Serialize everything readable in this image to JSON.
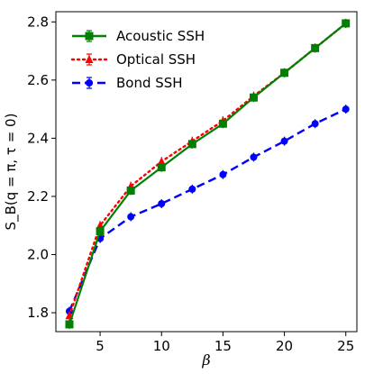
{
  "chart_data": {
    "type": "line",
    "xlabel": "β",
    "ylabel": "S_B(q = π, τ = 0)",
    "xlim": [
      1.4,
      25.9
    ],
    "ylim": [
      1.735,
      2.835
    ],
    "xticks": [
      5,
      10,
      15,
      20,
      25
    ],
    "xtick_labels": [
      "5",
      "10",
      "15",
      "20",
      "25"
    ],
    "yticks": [
      1.8,
      2.0,
      2.2,
      2.4,
      2.6,
      2.8
    ],
    "ytick_labels": [
      "1.8",
      "2.0",
      "2.2",
      "2.4",
      "2.6",
      "2.8"
    ],
    "grid": false,
    "legend_position": "upper-left",
    "x": [
      2.5,
      5,
      7.5,
      10,
      12.5,
      15,
      17.5,
      20,
      22.5,
      25
    ],
    "series": [
      {
        "name": "Acoustic SSH",
        "color": "#008000",
        "linestyle": "solid",
        "marker": "square",
        "values": [
          1.76,
          2.08,
          2.22,
          2.3,
          2.38,
          2.45,
          2.54,
          2.625,
          2.71,
          2.795
        ]
      },
      {
        "name": "Optical SSH",
        "color": "#ff0000",
        "linestyle": "dotted",
        "marker": "triangle",
        "values": [
          1.79,
          2.1,
          2.235,
          2.32,
          2.39,
          2.46,
          2.545,
          2.625,
          2.71,
          2.795
        ]
      },
      {
        "name": "Bond SSH",
        "color": "#0000ff",
        "linestyle": "dashed",
        "marker": "circle",
        "values": [
          1.805,
          2.055,
          2.13,
          2.175,
          2.225,
          2.275,
          2.335,
          2.39,
          2.45,
          2.5
        ]
      }
    ]
  }
}
